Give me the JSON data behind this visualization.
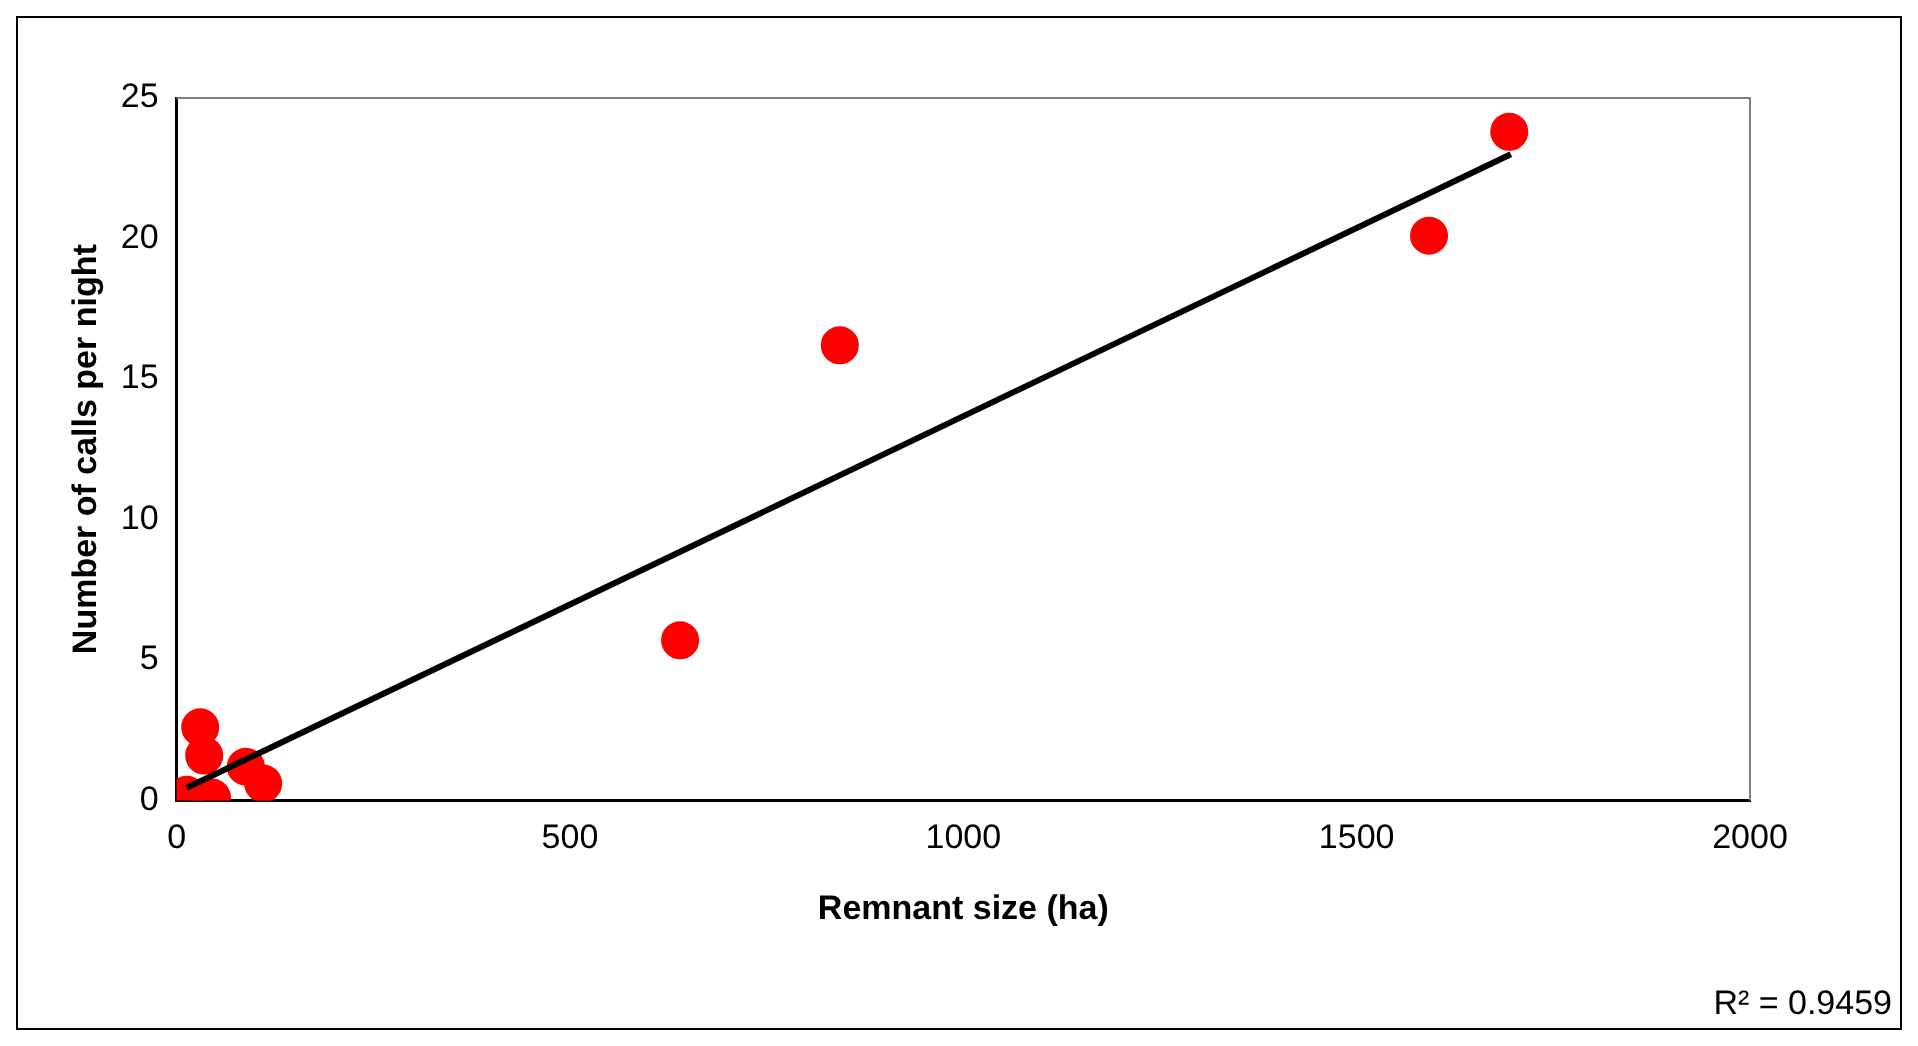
{
  "chart_data": {
    "type": "scatter",
    "xlabel": "Remnant size (ha)",
    "ylabel": "Number of calls per night",
    "series": [
      {
        "type": "scatter",
        "color": "#ff0000",
        "x": [
          13,
          30,
          35,
          45,
          88,
          110,
          640,
          843,
          1592,
          1694
        ],
        "values": [
          0.2,
          2.6,
          1.6,
          0.1,
          1.2,
          0.6,
          5.7,
          16.2,
          20.1,
          23.8
        ],
        "marker": "circle"
      },
      {
        "type": "line",
        "color": "#000000",
        "x": [
          13,
          1696
        ],
        "values": [
          0.45,
          23
        ],
        "marker": "none"
      }
    ],
    "xlim": [
      0,
      2000
    ],
    "xticks": [
      0,
      500,
      1000,
      1500,
      2000
    ],
    "ylim": [
      0,
      25
    ],
    "yticks": [
      0,
      5,
      10,
      15,
      20,
      25
    ],
    "grid": false,
    "legend": false,
    "annotations": [
      "R² = 0.9459"
    ]
  }
}
